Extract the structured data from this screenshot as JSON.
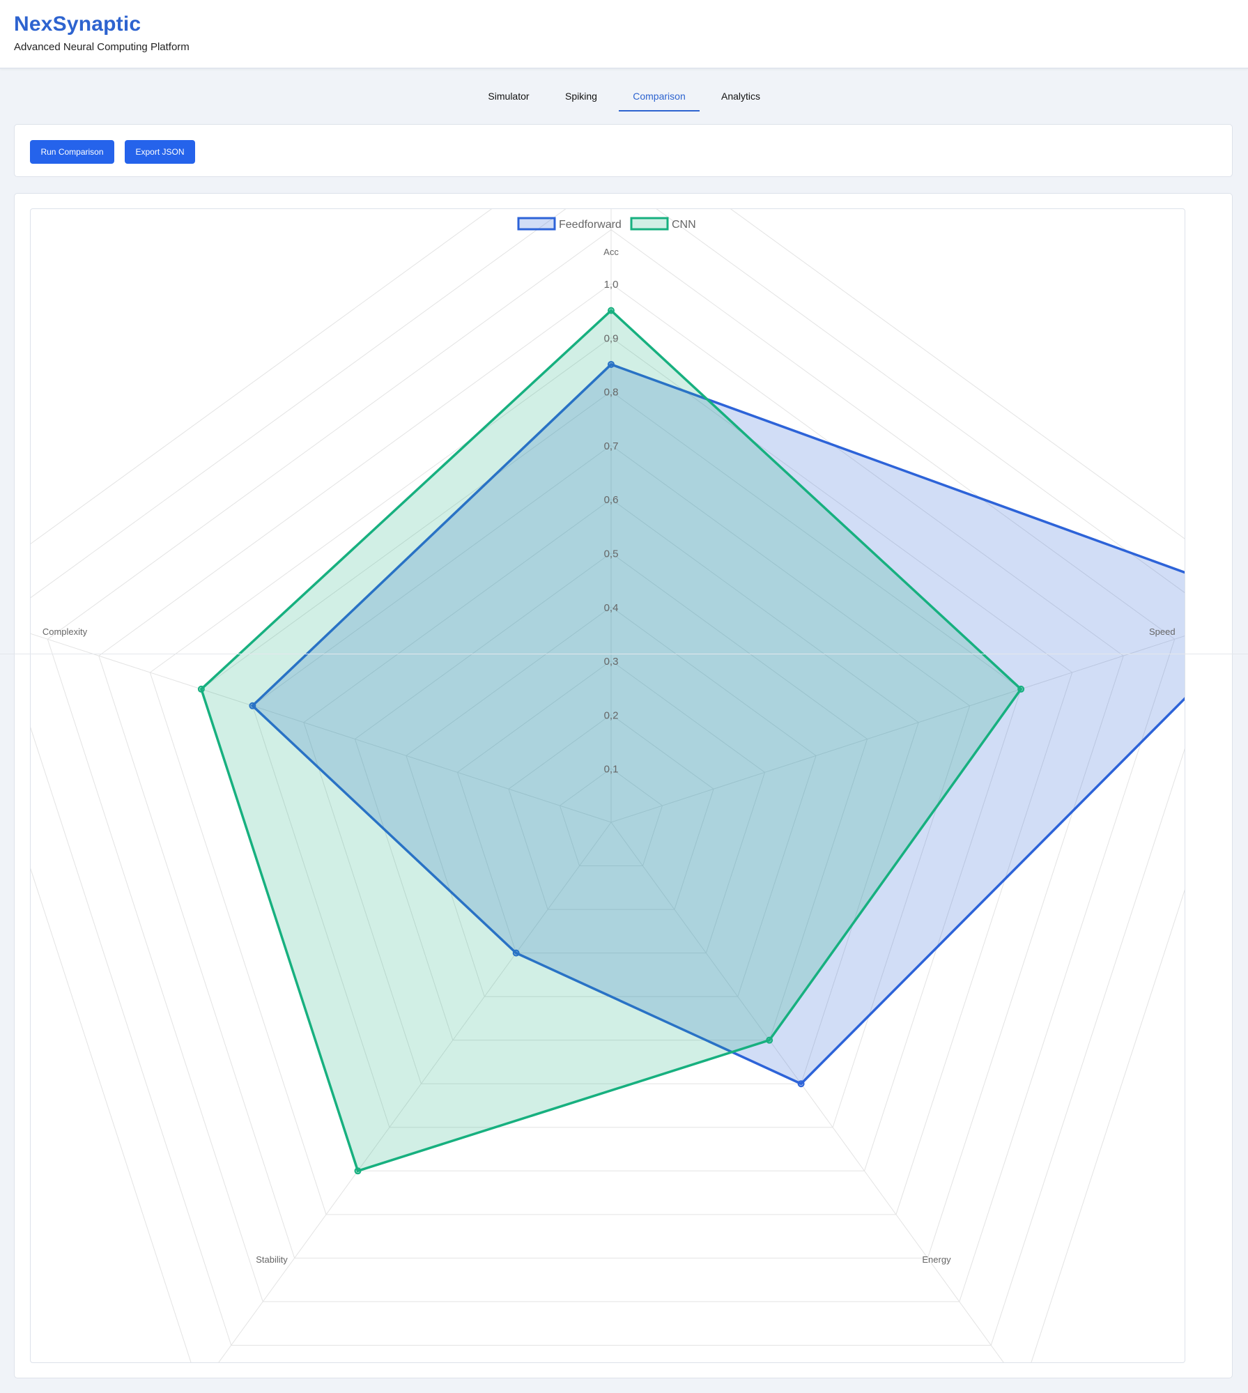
{
  "header": {
    "title": "NexSynaptic",
    "subtitle": "Advanced Neural Computing Platform"
  },
  "tabs": [
    {
      "label": "Simulator",
      "active": false
    },
    {
      "label": "Spiking",
      "active": false
    },
    {
      "label": "Comparison",
      "active": true
    },
    {
      "label": "Analytics",
      "active": false
    }
  ],
  "toolbar": {
    "run_label": "Run Comparison",
    "export_label": "Export JSON"
  },
  "colors": {
    "accent": "#2d63cf",
    "button": "#2563eb",
    "feedforward": "#2d63d8",
    "cnn": "#17b07f"
  },
  "chart_data": {
    "type": "radar",
    "axes": [
      "Acc",
      "Speed",
      "Energy",
      "Stability",
      "Complexity"
    ],
    "r_ticks": [
      "0,1",
      "0,2",
      "0,3",
      "0,4",
      "0,5",
      "0,6",
      "0,7",
      "0,8",
      "0,9",
      "1,0"
    ],
    "r_range": [
      0,
      1.3
    ],
    "grid": true,
    "legend_position": "top",
    "series": [
      {
        "name": "Feedforward",
        "values": [
          0.85,
          1.3,
          0.6,
          0.3,
          0.7
        ]
      },
      {
        "name": "CNN",
        "values": [
          0.95,
          0.8,
          0.5,
          0.8,
          0.8
        ]
      }
    ]
  }
}
